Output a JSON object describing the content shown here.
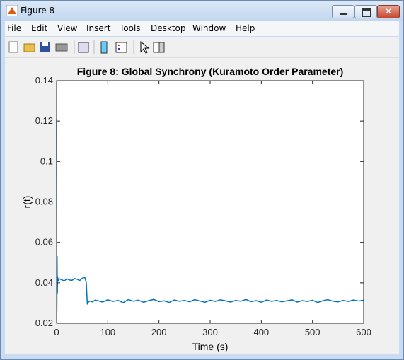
{
  "window": {
    "title": "Figure 8",
    "menu": [
      "File",
      "Edit",
      "View",
      "Insert",
      "Tools",
      "Desktop",
      "Window",
      "Help"
    ]
  },
  "chart_data": {
    "type": "line",
    "title": "Figure 8: Global Synchrony (Kuramoto Order Parameter)",
    "x_label": "Time (s)",
    "y_label": "r(t)",
    "color": "#0072bd",
    "xlim": [
      0,
      600
    ],
    "ylim": [
      0.02,
      0.14
    ],
    "xticks": [
      0,
      100,
      200,
      300,
      400,
      500,
      600
    ],
    "yticks": [
      0.02,
      0.04,
      0.06,
      0.08,
      0.1,
      0.12,
      0.14
    ],
    "x": [
      0,
      0.5,
      1,
      1.5,
      2,
      3,
      5,
      10,
      15,
      20,
      25,
      30,
      35,
      40,
      45,
      50,
      55,
      58,
      60,
      62,
      65,
      70,
      75,
      80,
      90,
      100,
      110,
      120,
      130,
      140,
      150,
      160,
      170,
      180,
      190,
      200,
      210,
      220,
      230,
      240,
      250,
      260,
      270,
      280,
      290,
      300,
      310,
      320,
      330,
      340,
      350,
      360,
      370,
      380,
      390,
      400,
      410,
      420,
      430,
      440,
      450,
      460,
      470,
      480,
      490,
      500,
      510,
      520,
      530,
      540,
      550,
      560,
      570,
      580,
      590,
      600
    ],
    "values": [
      0.121,
      0.026,
      0.053,
      0.035,
      0.043,
      0.041,
      0.042,
      0.0415,
      0.0409,
      0.042,
      0.0414,
      0.0412,
      0.0421,
      0.0418,
      0.0411,
      0.0422,
      0.0428,
      0.04,
      0.0295,
      0.0305,
      0.031,
      0.0306,
      0.0314,
      0.0312,
      0.0305,
      0.0316,
      0.0308,
      0.0313,
      0.0302,
      0.0317,
      0.0309,
      0.0314,
      0.0304,
      0.0312,
      0.0318,
      0.0307,
      0.0311,
      0.0303,
      0.0315,
      0.0309,
      0.0313,
      0.0306,
      0.0317,
      0.031,
      0.0304,
      0.0314,
      0.0308,
      0.0316,
      0.0311,
      0.0305,
      0.0313,
      0.0309,
      0.0318,
      0.0307,
      0.0312,
      0.0304,
      0.0315,
      0.0309,
      0.0313,
      0.0306,
      0.0311,
      0.0316,
      0.0305,
      0.0312,
      0.0308,
      0.0314,
      0.0303,
      0.0311,
      0.0317,
      0.0309,
      0.0306,
      0.0313,
      0.0308,
      0.0315,
      0.031,
      0.0314
    ]
  }
}
